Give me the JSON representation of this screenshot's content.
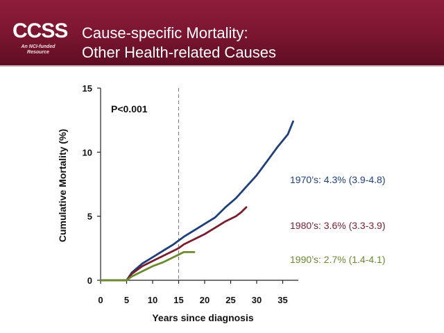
{
  "header": {
    "logo_text": "CCSS",
    "logo_tagline": [
      "An NCI-funded",
      "Resource"
    ],
    "title_lines": [
      "Cause-specific Mortality:",
      "Other Health-related Causes"
    ],
    "colors": {
      "banner": "#7a1530",
      "title_text": "#ffffff"
    }
  },
  "chart_data": {
    "type": "line",
    "title": "",
    "xlabel": "Years since diagnosis",
    "ylabel": "Cumulative Mortality (%)",
    "xlim": [
      0,
      38
    ],
    "ylim": [
      0,
      15
    ],
    "xticks": [
      0,
      5,
      10,
      15,
      20,
      25,
      30,
      35
    ],
    "yticks": [
      0,
      5,
      10,
      15
    ],
    "reference_line": {
      "x": 15,
      "style": "dashed"
    },
    "annotation": "P<0.001",
    "legend_placement": "right, beside line ends",
    "series": [
      {
        "name": "1970’s: 4.3% (3.9-4.8)",
        "color": "#1f3f7a",
        "x": [
          0,
          5,
          6,
          8,
          10,
          12,
          14,
          15,
          16,
          18,
          20,
          22,
          24,
          26,
          28,
          30,
          32,
          34,
          35,
          36,
          37
        ],
        "y": [
          0,
          0,
          0.6,
          1.3,
          1.8,
          2.3,
          2.8,
          3.1,
          3.4,
          3.9,
          4.4,
          4.9,
          5.7,
          6.4,
          7.3,
          8.2,
          9.3,
          10.4,
          10.9,
          11.4,
          12.4
        ]
      },
      {
        "name": "1980’s: 3.6% (3.3-3.9)",
        "color": "#7a1e2e",
        "x": [
          0,
          5,
          6,
          8,
          10,
          12,
          14,
          15,
          16,
          18,
          20,
          22,
          24,
          26,
          27,
          28
        ],
        "y": [
          0,
          0,
          0.5,
          1.1,
          1.5,
          1.9,
          2.3,
          2.5,
          2.8,
          3.2,
          3.6,
          4.1,
          4.6,
          5.0,
          5.3,
          5.7
        ]
      },
      {
        "name": "1990’s: 2.7% (1.4-4.1)",
        "color": "#6a8a2e",
        "x": [
          0,
          5,
          6,
          8,
          10,
          12,
          14,
          15,
          16,
          18
        ],
        "y": [
          0,
          0,
          0.3,
          0.7,
          1.1,
          1.4,
          1.8,
          2.0,
          2.2,
          2.2
        ]
      }
    ]
  }
}
